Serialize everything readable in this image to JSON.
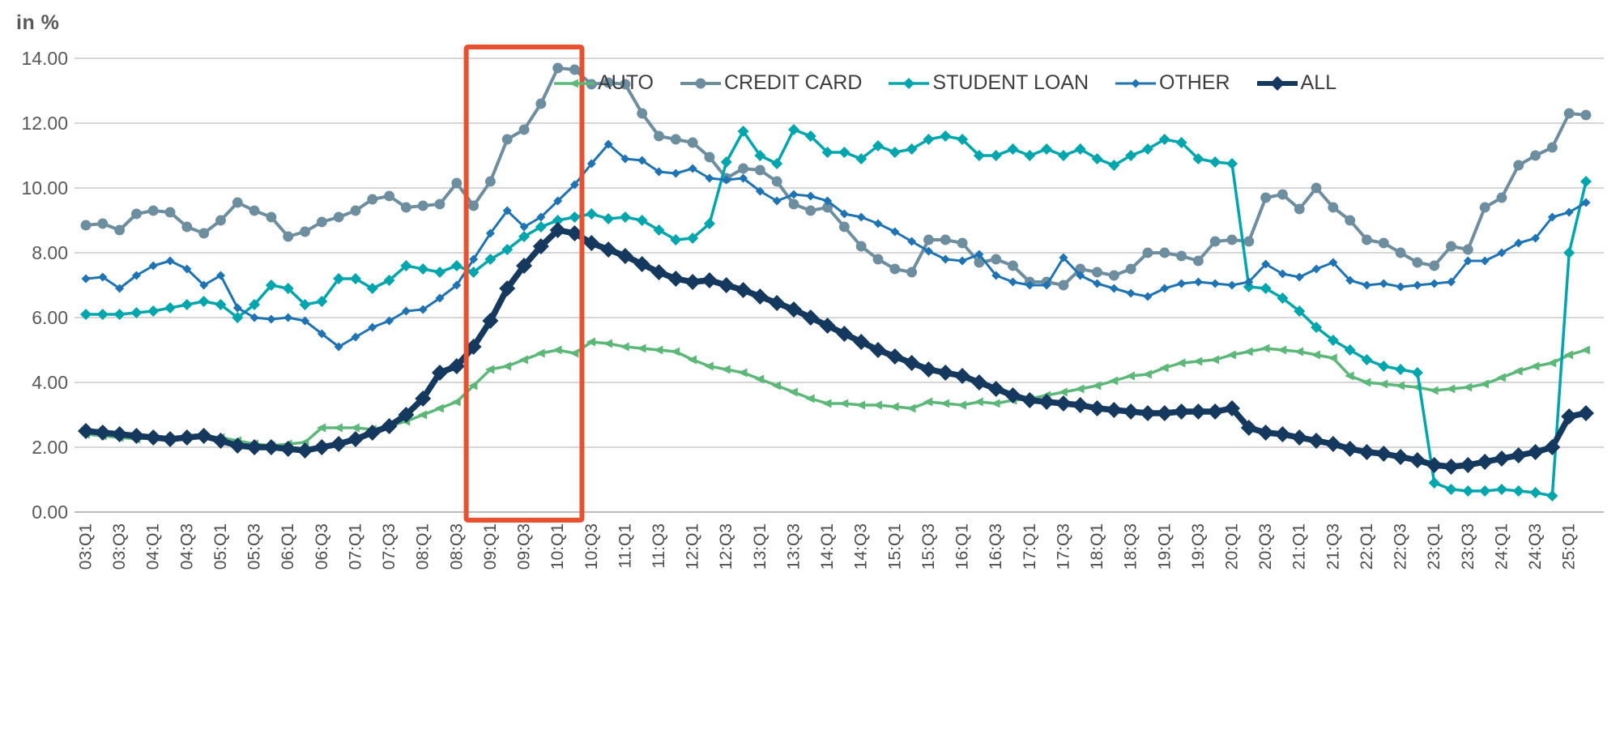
{
  "chart_data": {
    "type": "line",
    "ylabel": "in %",
    "ylim": [
      0,
      14
    ],
    "y_tick_step": 2,
    "y_tick_decimals": 2,
    "x_tick_every": 2,
    "grid": true,
    "legend_position": "top",
    "x": [
      "03:Q1",
      "03:Q2",
      "03:Q3",
      "03:Q4",
      "04:Q1",
      "04:Q2",
      "04:Q3",
      "04:Q4",
      "05:Q1",
      "05:Q2",
      "05:Q3",
      "05:Q4",
      "06:Q1",
      "06:Q2",
      "06:Q3",
      "06:Q4",
      "07:Q1",
      "07:Q2",
      "07:Q3",
      "07:Q4",
      "08:Q1",
      "08:Q2",
      "08:Q3",
      "08:Q4",
      "09:Q1",
      "09:Q2",
      "09:Q3",
      "09:Q4",
      "10:Q1",
      "10:Q2",
      "10:Q3",
      "10:Q4",
      "11:Q1",
      "11:Q2",
      "11:Q3",
      "11:Q4",
      "12:Q1",
      "12:Q2",
      "12:Q3",
      "12:Q4",
      "13:Q1",
      "13:Q2",
      "13:Q3",
      "13:Q4",
      "14:Q1",
      "14:Q2",
      "14:Q3",
      "14:Q4",
      "15:Q1",
      "15:Q2",
      "15:Q3",
      "15:Q4",
      "16:Q1",
      "16:Q2",
      "16:Q3",
      "16:Q4",
      "17:Q1",
      "17:Q2",
      "17:Q3",
      "17:Q4",
      "18:Q1",
      "18:Q2",
      "18:Q3",
      "18:Q4",
      "19:Q1",
      "19:Q2",
      "19:Q3",
      "19:Q4",
      "20:Q1",
      "20:Q2",
      "20:Q3",
      "20:Q4",
      "21:Q1",
      "21:Q2",
      "21:Q3",
      "21:Q4",
      "22:Q1",
      "22:Q2",
      "22:Q3",
      "22:Q4",
      "23:Q1",
      "23:Q2",
      "23:Q3",
      "23:Q4",
      "24:Q1",
      "24:Q2",
      "24:Q3",
      "24:Q4",
      "25:Q1",
      "25:Q2"
    ],
    "series": [
      {
        "name": "AUTO",
        "color": "#5cb878",
        "marker": "triangle-left",
        "marker_size": 6.5,
        "line_width": 3.5,
        "values": [
          2.4,
          2.35,
          2.3,
          2.25,
          2.3,
          2.25,
          2.3,
          2.35,
          2.3,
          2.2,
          2.1,
          2.05,
          2.1,
          2.15,
          2.6,
          2.6,
          2.6,
          2.55,
          2.65,
          2.8,
          3.0,
          3.2,
          3.4,
          3.9,
          4.4,
          4.5,
          4.7,
          4.9,
          5.0,
          4.9,
          5.25,
          5.2,
          5.1,
          5.05,
          5.0,
          4.95,
          4.7,
          4.5,
          4.4,
          4.3,
          4.1,
          3.9,
          3.7,
          3.5,
          3.35,
          3.35,
          3.3,
          3.3,
          3.25,
          3.2,
          3.4,
          3.35,
          3.3,
          3.4,
          3.35,
          3.45,
          3.5,
          3.6,
          3.7,
          3.8,
          3.9,
          4.05,
          4.2,
          4.25,
          4.45,
          4.6,
          4.65,
          4.7,
          4.85,
          4.95,
          5.05,
          5.0,
          4.95,
          4.85,
          4.75,
          4.2,
          4.0,
          3.95,
          3.9,
          3.85,
          3.75,
          3.8,
          3.85,
          3.95,
          4.15,
          4.35,
          4.5,
          4.6,
          4.85,
          5.0
        ]
      },
      {
        "name": "CREDIT CARD",
        "color": "#6d8e9e",
        "marker": "circle",
        "marker_size": 7,
        "line_width": 4,
        "values": [
          8.85,
          8.9,
          8.7,
          9.2,
          9.3,
          9.25,
          8.8,
          8.6,
          9.0,
          9.55,
          9.3,
          9.1,
          8.5,
          8.65,
          8.95,
          9.1,
          9.3,
          9.65,
          9.75,
          9.4,
          9.45,
          9.5,
          10.15,
          9.45,
          10.2,
          11.5,
          11.8,
          12.6,
          13.7,
          13.65,
          13.2,
          13.25,
          13.2,
          12.3,
          11.6,
          11.5,
          11.4,
          10.95,
          10.3,
          10.6,
          10.55,
          10.2,
          9.5,
          9.3,
          9.4,
          8.8,
          8.2,
          7.8,
          7.5,
          7.4,
          8.4,
          8.4,
          8.3,
          7.7,
          7.8,
          7.6,
          7.1,
          7.1,
          7.0,
          7.5,
          7.4,
          7.3,
          7.5,
          8.0,
          8.0,
          7.9,
          7.75,
          8.35,
          8.4,
          8.35,
          9.7,
          9.8,
          9.35,
          10.0,
          9.4,
          9.0,
          8.4,
          8.3,
          8.0,
          7.7,
          7.6,
          8.2,
          8.1,
          9.4,
          9.7,
          10.7,
          11.0,
          11.25,
          12.3,
          12.25
        ]
      },
      {
        "name": "STUDENT LOAN",
        "color": "#00a6ad",
        "marker": "diamond",
        "marker_size": 7,
        "line_width": 3.5,
        "values": [
          6.1,
          6.1,
          6.1,
          6.15,
          6.2,
          6.3,
          6.4,
          6.5,
          6.4,
          6.0,
          6.4,
          7.0,
          6.9,
          6.4,
          6.5,
          7.2,
          7.2,
          6.9,
          7.15,
          7.6,
          7.5,
          7.4,
          7.6,
          7.4,
          7.8,
          8.1,
          8.5,
          8.8,
          9.0,
          9.1,
          9.2,
          9.05,
          9.1,
          9.0,
          8.7,
          8.4,
          8.45,
          8.9,
          10.8,
          11.75,
          11.0,
          10.75,
          11.8,
          11.6,
          11.1,
          11.1,
          10.9,
          11.3,
          11.1,
          11.2,
          11.5,
          11.6,
          11.5,
          11.0,
          11.0,
          11.2,
          11.0,
          11.2,
          11.0,
          11.2,
          10.9,
          10.7,
          11.0,
          11.2,
          11.5,
          11.4,
          10.9,
          10.8,
          10.75,
          6.95,
          6.9,
          6.6,
          6.2,
          5.7,
          5.3,
          5.0,
          4.7,
          4.5,
          4.4,
          4.3,
          0.9,
          0.7,
          0.65,
          0.65,
          0.7,
          0.65,
          0.6,
          0.5,
          8.0,
          10.2
        ]
      },
      {
        "name": "OTHER",
        "color": "#1e73b4",
        "marker": "diamond",
        "marker_size": 5.5,
        "line_width": 3,
        "values": [
          7.2,
          7.25,
          6.9,
          7.3,
          7.6,
          7.75,
          7.5,
          7.0,
          7.3,
          6.3,
          6.0,
          5.95,
          6.0,
          5.9,
          5.5,
          5.1,
          5.4,
          5.7,
          5.9,
          6.2,
          6.25,
          6.6,
          7.0,
          7.8,
          8.6,
          9.3,
          8.8,
          9.1,
          9.6,
          10.1,
          10.75,
          11.35,
          10.9,
          10.85,
          10.5,
          10.45,
          10.6,
          10.3,
          10.25,
          10.3,
          9.9,
          9.6,
          9.8,
          9.75,
          9.6,
          9.2,
          9.1,
          8.9,
          8.65,
          8.35,
          8.05,
          7.8,
          7.75,
          7.95,
          7.3,
          7.1,
          7.0,
          7.0,
          7.85,
          7.3,
          7.05,
          6.9,
          6.75,
          6.65,
          6.9,
          7.05,
          7.1,
          7.05,
          7.0,
          7.1,
          7.65,
          7.35,
          7.25,
          7.5,
          7.7,
          7.15,
          7.0,
          7.05,
          6.95,
          7.0,
          7.05,
          7.1,
          7.75,
          7.75,
          8.0,
          8.3,
          8.45,
          9.1,
          9.25,
          9.55
        ]
      },
      {
        "name": "ALL",
        "color": "#15395e",
        "marker": "diamond",
        "marker_size": 10,
        "line_width": 7.5,
        "values": [
          2.5,
          2.45,
          2.4,
          2.35,
          2.3,
          2.25,
          2.3,
          2.35,
          2.2,
          2.05,
          2.0,
          2.0,
          1.95,
          1.9,
          2.0,
          2.1,
          2.25,
          2.45,
          2.65,
          3.0,
          3.5,
          4.3,
          4.5,
          5.1,
          5.9,
          6.9,
          7.6,
          8.2,
          8.7,
          8.6,
          8.3,
          8.1,
          7.9,
          7.65,
          7.4,
          7.2,
          7.1,
          7.15,
          7.0,
          6.85,
          6.65,
          6.45,
          6.25,
          6.0,
          5.75,
          5.5,
          5.25,
          5.0,
          4.8,
          4.6,
          4.4,
          4.3,
          4.2,
          4.0,
          3.8,
          3.6,
          3.45,
          3.4,
          3.35,
          3.3,
          3.2,
          3.15,
          3.1,
          3.05,
          3.05,
          3.1,
          3.1,
          3.1,
          3.2,
          2.6,
          2.45,
          2.4,
          2.3,
          2.2,
          2.1,
          1.95,
          1.85,
          1.8,
          1.7,
          1.6,
          1.45,
          1.4,
          1.45,
          1.55,
          1.65,
          1.75,
          1.85,
          2.0,
          2.95,
          3.05
        ]
      }
    ],
    "annotation": {
      "shape": "rect",
      "x_start": "08:Q4",
      "x_end": "10:Q2",
      "color": "#e8502f",
      "meaning": "highlighted-period"
    }
  }
}
